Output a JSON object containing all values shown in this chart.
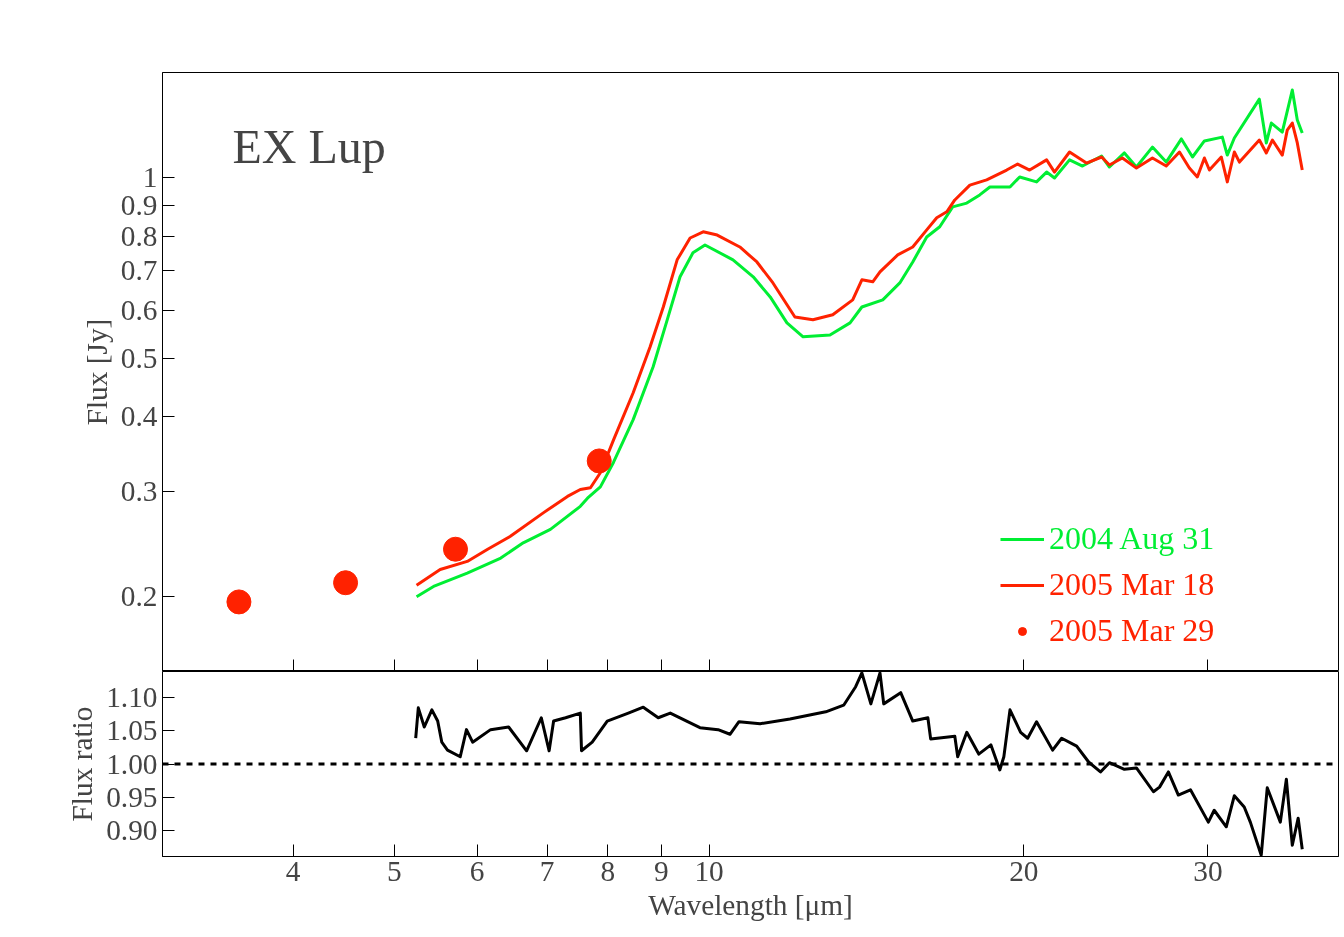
{
  "chart_data": [
    {
      "type": "line",
      "title": "EX Lup",
      "ylabel": "Flux [Jy]",
      "log": "xy",
      "xlim": [
        3,
        40
      ],
      "ylim": [
        0.15,
        1.5
      ],
      "xticks": [
        4,
        5,
        6,
        7,
        8,
        9,
        10,
        20,
        30
      ],
      "yticks": [
        0.2,
        0.3,
        0.4,
        0.5,
        0.6,
        0.7,
        0.8,
        0.9,
        1
      ],
      "tick_labels": "y",
      "legend": "bottom right",
      "series": [
        {
          "name": "2004 Aug 31",
          "color": "#00ee33",
          "x": [
            5.25,
            5.45,
            5.87,
            6.32,
            6.64,
            7.05,
            7.53,
            7.65,
            7.87,
            8.1,
            8.46,
            8.84,
            9.12,
            9.38,
            9.65,
            9.91,
            10.54,
            11.02,
            11.44,
            11.87,
            12.3,
            13.05,
            13.64,
            14.0,
            14.66,
            15.22,
            15.66,
            16.15,
            16.62,
            17.1,
            17.64,
            18.15,
            18.56,
            19.4,
            19.82,
            20.57,
            21.03,
            21.4,
            22.12,
            22.76,
            23.74,
            24.15,
            24.96,
            25.63,
            26.55,
            27.37,
            28.3,
            29.0,
            29.77,
            30.97,
            31.31,
            31.8,
            33.6,
            34.12,
            34.5,
            35.34,
            36.13,
            36.53,
            36.93
          ],
          "values": [
            0.2,
            0.208,
            0.219,
            0.232,
            0.246,
            0.259,
            0.283,
            0.292,
            0.305,
            0.335,
            0.395,
            0.484,
            0.58,
            0.684,
            0.75,
            0.773,
            0.73,
            0.684,
            0.633,
            0.573,
            0.543,
            0.547,
            0.573,
            0.609,
            0.626,
            0.668,
            0.724,
            0.797,
            0.829,
            0.895,
            0.908,
            0.937,
            0.966,
            0.966,
            1.004,
            0.985,
            1.023,
            1.0,
            1.072,
            1.047,
            1.088,
            1.043,
            1.101,
            1.043,
            1.126,
            1.063,
            1.162,
            1.084,
            1.153,
            1.17,
            1.092,
            1.166,
            1.354,
            1.144,
            1.235,
            1.193,
            1.402,
            1.25,
            1.189
          ]
        },
        {
          "name": "2005 Mar 18",
          "color": "#ff2200",
          "x": [
            5.25,
            5.53,
            5.87,
            6.14,
            6.45,
            6.94,
            7.32,
            7.53,
            7.7,
            7.87,
            8.1,
            8.46,
            8.78,
            9.04,
            9.32,
            9.59,
            9.87,
            10.18,
            10.7,
            11.11,
            11.51,
            12.08,
            12.57,
            13.13,
            13.72,
            14.0,
            14.34,
            14.57,
            15.15,
            15.66,
            16.15,
            16.51,
            16.88,
            17.18,
            17.76,
            18.43,
            19.26,
            19.73,
            20.26,
            21.03,
            21.4,
            22.12,
            22.96,
            23.74,
            24.15,
            24.85,
            25.63,
            26.55,
            27.37,
            28.18,
            28.8,
            29.31,
            29.77,
            30.1,
            30.9,
            31.31,
            31.8,
            32.16,
            33.6,
            34.12,
            34.58,
            35.34,
            35.73,
            36.13,
            36.53,
            36.93
          ],
          "values": [
            0.209,
            0.222,
            0.229,
            0.24,
            0.252,
            0.276,
            0.294,
            0.302,
            0.304,
            0.322,
            0.365,
            0.438,
            0.522,
            0.609,
            0.73,
            0.794,
            0.813,
            0.803,
            0.767,
            0.724,
            0.668,
            0.586,
            0.58,
            0.591,
            0.626,
            0.676,
            0.671,
            0.697,
            0.744,
            0.767,
            0.819,
            0.858,
            0.878,
            0.919,
            0.973,
            0.993,
            1.031,
            1.055,
            1.031,
            1.072,
            1.023,
            1.105,
            1.059,
            1.084,
            1.051,
            1.08,
            1.039,
            1.08,
            1.047,
            1.105,
            1.039,
            1.004,
            1.08,
            1.031,
            1.084,
            0.985,
            1.105,
            1.063,
            1.157,
            1.101,
            1.157,
            1.092,
            1.202,
            1.235,
            1.144,
            1.031
          ]
        },
        {
          "name": "2005 Mar 29",
          "type": "scatter",
          "marker": "circle",
          "color": "#ff2200",
          "x": [
            3.55,
            4.49,
            5.72,
            7.85
          ],
          "values": [
            0.196,
            0.211,
            0.24,
            0.337
          ]
        }
      ]
    },
    {
      "type": "line",
      "xlabel": "Wavelength [μm]",
      "ylabel": "Flux ratio",
      "log": "x",
      "xlim": [
        3,
        40
      ],
      "ylim": [
        0.86,
        1.14
      ],
      "xticks": [
        4,
        5,
        6,
        7,
        8,
        9,
        10,
        20,
        30
      ],
      "yticks": [
        {
          "value": 0.9,
          "label": "0.90"
        },
        {
          "value": 0.95,
          "label": "0.95"
        },
        {
          "value": 1.0,
          "label": "1.00"
        },
        {
          "value": 1.05,
          "label": "1.05"
        },
        {
          "value": 1.1,
          "label": "1.10"
        }
      ],
      "ref_lines": [
        {
          "axis": "y",
          "value": 1.0,
          "line_style": "dashed",
          "color": "#000000"
        }
      ],
      "series": [
        {
          "color": "#000000",
          "x": [
            5.24,
            5.27,
            5.34,
            5.43,
            5.5,
            5.55,
            5.62,
            5.78,
            5.86,
            5.94,
            6.18,
            6.43,
            6.69,
            6.91,
            7.03,
            7.1,
            7.29,
            7.53,
            7.55,
            7.73,
            7.99,
            8.37,
            8.65,
            8.94,
            9.18,
            9.8,
            10.2,
            10.47,
            10.68,
            11.19,
            11.95,
            12.93,
            13.45,
            13.81,
            14.0,
            14.28,
            14.57,
            14.69,
            15.25,
            15.66,
            16.19,
            16.29,
            17.18,
            17.29,
            17.64,
            18.11,
            18.6,
            18.97,
            19.14,
            19.4,
            19.86,
            20.17,
            20.57,
            21.31,
            21.74,
            22.47,
            23.07,
            23.68,
            24.15,
            24.96,
            25.63,
            26.61,
            26.97,
            27.5,
            28.11,
            28.87,
            30.03,
            30.42,
            31.24,
            31.8,
            32.5,
            32.94,
            33.74,
            34.19,
            35.19,
            35.66,
            36.13,
            36.6,
            36.93
          ],
          "values": [
            1.039,
            1.085,
            1.056,
            1.082,
            1.065,
            1.033,
            1.021,
            1.011,
            1.052,
            1.033,
            1.052,
            1.056,
            1.02,
            1.07,
            1.02,
            1.065,
            1.07,
            1.077,
            1.02,
            1.033,
            1.065,
            1.077,
            1.086,
            1.07,
            1.077,
            1.055,
            1.052,
            1.045,
            1.064,
            1.061,
            1.068,
            1.079,
            1.089,
            1.117,
            1.138,
            1.091,
            1.138,
            1.091,
            1.108,
            1.065,
            1.07,
            1.038,
            1.042,
            1.011,
            1.048,
            1.015,
            1.029,
            0.991,
            1.011,
            1.082,
            1.048,
            1.039,
            1.064,
            1.021,
            1.039,
            1.027,
            1.003,
            0.988,
            1.002,
            0.992,
            0.994,
            0.958,
            0.965,
            0.988,
            0.953,
            0.961,
            0.912,
            0.93,
            0.905,
            0.952,
            0.935,
            0.912,
            0.862,
            0.964,
            0.912,
            0.977,
            0.877,
            0.918,
            0.871
          ]
        }
      ]
    }
  ]
}
